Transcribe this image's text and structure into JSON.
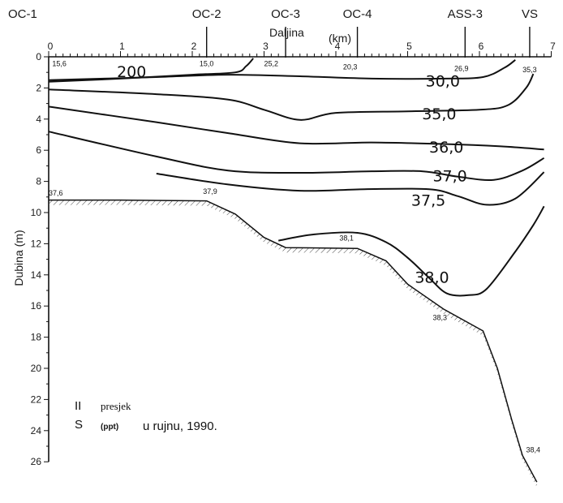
{
  "chart_data": {
    "type": "line",
    "title": "",
    "xlabel": "Daljina",
    "xunit": "(km)",
    "ylabel": "Dubina (m)",
    "xlim": [
      0,
      7
    ],
    "ylim": [
      0,
      26
    ],
    "x_ticks": [
      "0",
      "1",
      "2",
      "3",
      "4",
      "5",
      "6",
      "7"
    ],
    "y_ticks": [
      "0",
      "2",
      "4",
      "6",
      "8",
      "10",
      "12",
      "14",
      "16",
      "18",
      "20",
      "22",
      "24",
      "26"
    ],
    "stations": [
      {
        "name": "OC-1",
        "x": 0
      },
      {
        "name": "OC-2",
        "x": 2.2
      },
      {
        "name": "OC-3",
        "x": 3.3
      },
      {
        "name": "OC-4",
        "x": 4.3
      },
      {
        "name": "ASS-3",
        "x": 5.8
      },
      {
        "name": "VS",
        "x": 6.7
      }
    ],
    "isohalines": [
      {
        "label": "200",
        "points": [
          [
            0,
            1.6
          ],
          [
            1,
            1.4
          ],
          [
            2,
            1.15
          ],
          [
            2.6,
            1.0
          ],
          [
            2.75,
            0.6
          ],
          [
            2.85,
            0.1
          ]
        ]
      },
      {
        "label": "30,0",
        "points": [
          [
            0,
            1.5
          ],
          [
            1.5,
            1.3
          ],
          [
            2.5,
            1.15
          ],
          [
            3.5,
            1.25
          ],
          [
            4.5,
            1.4
          ],
          [
            5.5,
            1.4
          ],
          [
            6.05,
            1.3
          ],
          [
            6.35,
            0.7
          ],
          [
            6.5,
            0.2
          ]
        ]
      },
      {
        "label": "35,0",
        "points": [
          [
            0,
            2.1
          ],
          [
            1.5,
            2.4
          ],
          [
            2.5,
            2.75
          ],
          [
            3,
            3.4
          ],
          [
            3.5,
            4.05
          ],
          [
            4,
            3.6
          ],
          [
            5,
            3.5
          ],
          [
            6,
            3.4
          ],
          [
            6.4,
            3.1
          ],
          [
            6.65,
            2.0
          ],
          [
            6.75,
            1.1
          ]
        ]
      },
      {
        "label": "36,0",
        "points": [
          [
            0,
            3.2
          ],
          [
            1.5,
            4.2
          ],
          [
            2.5,
            4.9
          ],
          [
            3.5,
            5.55
          ],
          [
            4.5,
            5.5
          ],
          [
            5.5,
            5.6
          ],
          [
            6.3,
            5.75
          ],
          [
            6.9,
            5.95
          ]
        ]
      },
      {
        "label": "37,0",
        "points": [
          [
            0,
            4.8
          ],
          [
            1.5,
            6.4
          ],
          [
            2.5,
            7.3
          ],
          [
            3.5,
            7.45
          ],
          [
            4.5,
            7.35
          ],
          [
            5.2,
            7.35
          ],
          [
            5.7,
            7.7
          ],
          [
            6.2,
            7.9
          ],
          [
            6.6,
            7.3
          ],
          [
            6.9,
            6.5
          ]
        ]
      },
      {
        "label": "37,5",
        "points": [
          [
            1.5,
            7.5
          ],
          [
            2.5,
            8.2
          ],
          [
            3.5,
            8.6
          ],
          [
            4.4,
            8.5
          ],
          [
            5.3,
            8.5
          ],
          [
            5.7,
            8.95
          ],
          [
            6.1,
            9.5
          ],
          [
            6.5,
            9.1
          ],
          [
            6.9,
            7.4
          ]
        ]
      },
      {
        "label": "38,0",
        "points": [
          [
            3.2,
            11.8
          ],
          [
            3.7,
            11.4
          ],
          [
            4.3,
            11.3
          ],
          [
            4.7,
            11.9
          ],
          [
            5,
            12.9
          ],
          [
            5.3,
            14.2
          ],
          [
            5.55,
            15.2
          ],
          [
            5.85,
            15.3
          ],
          [
            6.1,
            14.9
          ],
          [
            6.5,
            12.5
          ],
          [
            6.75,
            10.8
          ],
          [
            6.9,
            9.6
          ]
        ]
      }
    ],
    "isohaline_labels": [
      {
        "text": "200",
        "x": 0.95,
        "y": 1.3
      },
      {
        "text": "30,0",
        "x": 5.25,
        "y": 1.9
      },
      {
        "text": "35,0",
        "x": 5.2,
        "y": 4.0
      },
      {
        "text": "36,0",
        "x": 5.3,
        "y": 6.15
      },
      {
        "text": "37,0",
        "x": 5.35,
        "y": 8.0
      },
      {
        "text": "37,5",
        "x": 5.05,
        "y": 9.55
      },
      {
        "text": "38,0",
        "x": 5.1,
        "y": 14.5
      }
    ],
    "bottom_profile": [
      [
        0,
        9.2
      ],
      [
        1,
        9.2
      ],
      [
        2.2,
        9.25
      ],
      [
        2.6,
        10.1
      ],
      [
        3,
        11.6
      ],
      [
        3.3,
        12.25
      ],
      [
        4.3,
        12.3
      ],
      [
        4.7,
        13.1
      ],
      [
        5,
        14.6
      ],
      [
        5.5,
        16.2
      ],
      [
        6.05,
        17.6
      ],
      [
        6.25,
        20
      ],
      [
        6.45,
        23.3
      ],
      [
        6.6,
        25.6
      ],
      [
        6.8,
        27.3
      ]
    ],
    "point_labels": [
      {
        "text": "15,6",
        "x": 0.05,
        "y": 0.6
      },
      {
        "text": "15,0",
        "x": 2.1,
        "y": 0.6
      },
      {
        "text": "25,2",
        "x": 3.0,
        "y": 0.6
      },
      {
        "text": "20,3",
        "x": 4.1,
        "y": 0.8
      },
      {
        "text": "26,9",
        "x": 5.65,
        "y": 0.9
      },
      {
        "text": "35,3",
        "x": 6.6,
        "y": 1.0
      },
      {
        "text": "37,6",
        "x": 0,
        "y": 8.9
      },
      {
        "text": "37,9",
        "x": 2.15,
        "y": 8.8
      },
      {
        "text": "38,1",
        "x": 4.05,
        "y": 11.8
      },
      {
        "text": "38,3",
        "x": 5.35,
        "y": 16.9
      },
      {
        "text": "38,4",
        "x": 6.65,
        "y": 25.4
      }
    ]
  },
  "note": {
    "line1_mark": "II",
    "line1_text": "presjek",
    "line2_s": "S",
    "line2_unit": "(ppt)",
    "line2_text": "u rujnu, 1990."
  }
}
